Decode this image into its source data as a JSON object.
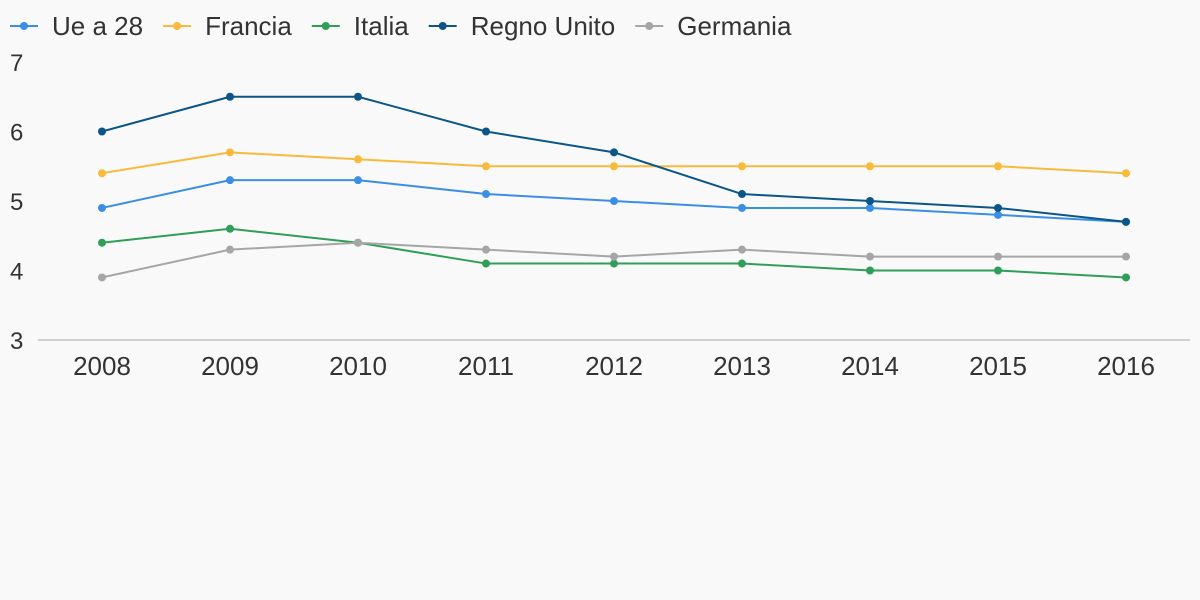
{
  "chart_data": {
    "type": "line",
    "categories": [
      "2008",
      "2009",
      "2010",
      "2011",
      "2012",
      "2013",
      "2014",
      "2015",
      "2016"
    ],
    "y_ticks": [
      "3",
      "4",
      "5",
      "6",
      "7"
    ],
    "ylim": [
      3,
      7
    ],
    "grid": false,
    "legend_position": "top-left",
    "series": [
      {
        "name": "Ue a 28",
        "color": "#3a8ee6",
        "values": [
          4.9,
          5.3,
          5.3,
          5.1,
          5.0,
          4.9,
          4.9,
          4.8,
          4.7
        ]
      },
      {
        "name": "Francia",
        "color": "#f9b93b",
        "values": [
          5.4,
          5.7,
          5.6,
          5.5,
          5.5,
          5.5,
          5.5,
          5.5,
          5.4
        ]
      },
      {
        "name": "Italia",
        "color": "#2e9e58",
        "values": [
          4.4,
          4.6,
          4.4,
          4.1,
          4.1,
          4.1,
          4.0,
          4.0,
          3.9
        ]
      },
      {
        "name": "Regno Unito",
        "color": "#0b5688",
        "values": [
          6.0,
          6.5,
          6.5,
          6.0,
          5.7,
          5.1,
          5.0,
          4.9,
          4.7
        ]
      },
      {
        "name": "Germania",
        "color": "#a6a6a6",
        "values": [
          3.9,
          4.3,
          4.4,
          4.3,
          4.2,
          4.3,
          4.2,
          4.2,
          4.2
        ]
      }
    ]
  }
}
